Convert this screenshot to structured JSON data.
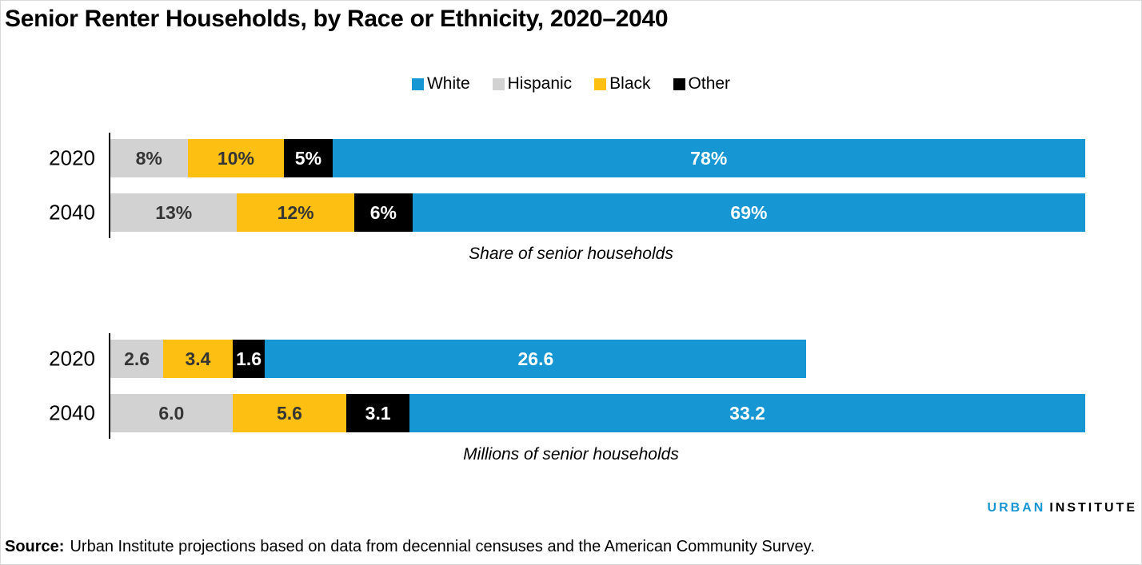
{
  "title": "Senior Renter Households, by Race or Ethnicity, 2020–2040",
  "colors": {
    "white_series": "#1696d2",
    "hispanic_series": "#d2d2d2",
    "black_series": "#fdbf11",
    "other_series": "#000000",
    "dark_label": "#353535",
    "light_label": "#ffffff"
  },
  "legend": {
    "position": "top-center",
    "items": [
      {
        "label": "White",
        "color": "#1696d2"
      },
      {
        "label": "Hispanic",
        "color": "#d2d2d2"
      },
      {
        "label": "Black",
        "color": "#fdbf11"
      },
      {
        "label": "Other",
        "color": "#000000"
      }
    ]
  },
  "chart_data": [
    {
      "type": "bar",
      "orientation": "horizontal",
      "stacked": true,
      "normalize": "row",
      "title": "Share of senior households",
      "categories": [
        "2020",
        "2040"
      ],
      "series": [
        {
          "name": "Hispanic",
          "color": "#d2d2d2",
          "label_color": "#353535",
          "values": [
            8,
            13
          ],
          "display": [
            "8%",
            "13%"
          ]
        },
        {
          "name": "Black",
          "color": "#fdbf11",
          "label_color": "#353535",
          "values": [
            10,
            12
          ],
          "display": [
            "10%",
            "12%"
          ]
        },
        {
          "name": "Other",
          "color": "#000000",
          "label_color": "#ffffff",
          "values": [
            5,
            6
          ],
          "display": [
            "5%",
            "6%"
          ]
        },
        {
          "name": "White",
          "color": "#1696d2",
          "label_color": "#ffffff",
          "values": [
            78,
            69
          ],
          "display": [
            "78%",
            "69%"
          ]
        }
      ]
    },
    {
      "type": "bar",
      "orientation": "horizontal",
      "stacked": true,
      "normalize": "max",
      "title": "Millions of senior households",
      "categories": [
        "2020",
        "2040"
      ],
      "series": [
        {
          "name": "Hispanic",
          "color": "#d2d2d2",
          "label_color": "#353535",
          "values": [
            2.6,
            6.0
          ],
          "display": [
            "2.6",
            "6.0"
          ]
        },
        {
          "name": "Black",
          "color": "#fdbf11",
          "label_color": "#353535",
          "values": [
            3.4,
            5.6
          ],
          "display": [
            "3.4",
            "5.6"
          ]
        },
        {
          "name": "Other",
          "color": "#000000",
          "label_color": "#ffffff",
          "values": [
            1.6,
            3.1
          ],
          "display": [
            "1.6",
            "3.1"
          ]
        },
        {
          "name": "White",
          "color": "#1696d2",
          "label_color": "#ffffff",
          "values": [
            26.6,
            33.2
          ],
          "display": [
            "26.6",
            "33.2"
          ]
        }
      ]
    }
  ],
  "footer": {
    "logo_urban": "URBAN",
    "logo_institute": "INSTITUTE",
    "source_label": "Source:",
    "source_text": "Urban Institute projections based on data from decennial censuses and the American Community Survey."
  }
}
